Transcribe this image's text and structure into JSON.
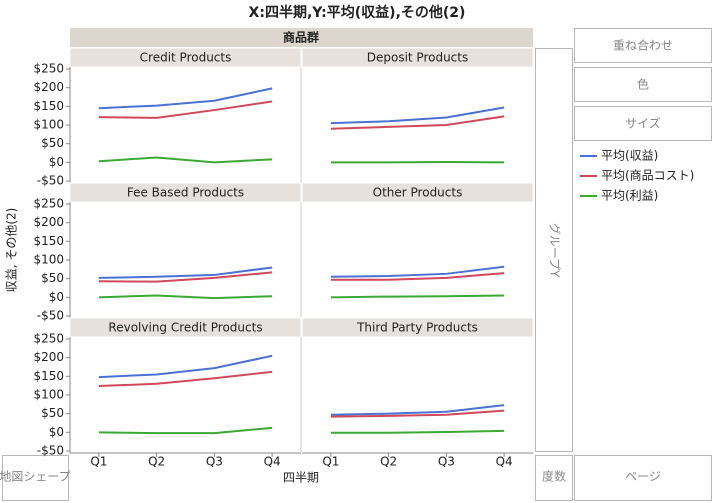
{
  "title": "X:四半期,Y:平均(収益),その他(2)",
  "group_x_header": "商品群",
  "y_label": "収益, その他(2)",
  "x_label": "四半期",
  "zones": {
    "overlay": "重ね合わせ",
    "color": "色",
    "size": "サイズ",
    "group_y": "グループY",
    "map_shape": "地図シェープ",
    "frequency": "度数",
    "page": "ページ"
  },
  "chart_data": [
    {
      "type": "line",
      "title": "Credit Products",
      "categories": [
        "Q1",
        "Q2",
        "Q3",
        "Q4"
      ],
      "ylim": [
        -50,
        250
      ],
      "yticks": [
        {
          "value": 250,
          "label": "$250"
        },
        {
          "value": 200,
          "label": "$200"
        },
        {
          "value": 150,
          "label": "$150"
        },
        {
          "value": 100,
          "label": "$100"
        },
        {
          "value": 50,
          "label": "$50"
        },
        {
          "value": 0,
          "label": "$0"
        },
        {
          "value": -50,
          "label": "-$50"
        }
      ],
      "series": [
        {
          "name": "平均(収益)",
          "color": "#4a72d4",
          "values": [
            145,
            152,
            165,
            198
          ]
        },
        {
          "name": "平均(商品コスト)",
          "color": "#d0495a",
          "values": [
            121,
            119,
            140,
            163
          ]
        },
        {
          "name": "平均(利益)",
          "color": "#3aaa35",
          "values": [
            3,
            13,
            0,
            8
          ]
        }
      ]
    },
    {
      "type": "line",
      "title": "Deposit Products",
      "categories": [
        "Q1",
        "Q2",
        "Q3",
        "Q4"
      ],
      "ylim": [
        -50,
        250
      ],
      "series": [
        {
          "name": "平均(収益)",
          "color": "#4a72d4",
          "values": [
            105,
            110,
            120,
            147
          ]
        },
        {
          "name": "平均(商品コスト)",
          "color": "#d0495a",
          "values": [
            90,
            95,
            100,
            123
          ]
        },
        {
          "name": "平均(利益)",
          "color": "#3aaa35",
          "values": [
            0,
            0,
            1,
            0
          ]
        }
      ]
    },
    {
      "type": "line",
      "title": "Fee Based Products",
      "categories": [
        "Q1",
        "Q2",
        "Q3",
        "Q4"
      ],
      "ylim": [
        -50,
        250
      ],
      "yticks": [
        {
          "value": 250,
          "label": "$250"
        },
        {
          "value": 200,
          "label": "$200"
        },
        {
          "value": 150,
          "label": "$150"
        },
        {
          "value": 100,
          "label": "$100"
        },
        {
          "value": 50,
          "label": "$50"
        },
        {
          "value": 0,
          "label": "$0"
        },
        {
          "value": -50,
          "label": "-$50"
        }
      ],
      "series": [
        {
          "name": "平均(収益)",
          "color": "#4a72d4",
          "values": [
            52,
            55,
            60,
            80
          ]
        },
        {
          "name": "平均(商品コスト)",
          "color": "#d0495a",
          "values": [
            43,
            42,
            52,
            67
          ]
        },
        {
          "name": "平均(利益)",
          "color": "#3aaa35",
          "values": [
            0,
            5,
            -2,
            3
          ]
        }
      ]
    },
    {
      "type": "line",
      "title": "Other Products",
      "categories": [
        "Q1",
        "Q2",
        "Q3",
        "Q4"
      ],
      "ylim": [
        -50,
        250
      ],
      "series": [
        {
          "name": "平均(収益)",
          "color": "#4a72d4",
          "values": [
            55,
            57,
            63,
            82
          ]
        },
        {
          "name": "平均(商品コスト)",
          "color": "#d0495a",
          "values": [
            47,
            47,
            52,
            65
          ]
        },
        {
          "name": "平均(利益)",
          "color": "#3aaa35",
          "values": [
            0,
            2,
            3,
            5
          ]
        }
      ]
    },
    {
      "type": "line",
      "title": "Revolving Credit Products",
      "categories": [
        "Q1",
        "Q2",
        "Q3",
        "Q4"
      ],
      "ylim": [
        -50,
        250
      ],
      "yticks": [
        {
          "value": 250,
          "label": "$250"
        },
        {
          "value": 200,
          "label": "$200"
        },
        {
          "value": 150,
          "label": "$150"
        },
        {
          "value": 100,
          "label": "$100"
        },
        {
          "value": 50,
          "label": "$50"
        },
        {
          "value": 0,
          "label": "$0"
        },
        {
          "value": -50,
          "label": "-$50"
        }
      ],
      "series": [
        {
          "name": "平均(収益)",
          "color": "#4a72d4",
          "values": [
            148,
            155,
            172,
            205
          ]
        },
        {
          "name": "平均(商品コスト)",
          "color": "#d0495a",
          "values": [
            124,
            130,
            145,
            162
          ]
        },
        {
          "name": "平均(利益)",
          "color": "#3aaa35",
          "values": [
            0,
            -2,
            -2,
            12
          ]
        }
      ]
    },
    {
      "type": "line",
      "title": "Third Party Products",
      "categories": [
        "Q1",
        "Q2",
        "Q3",
        "Q4"
      ],
      "ylim": [
        -50,
        250
      ],
      "series": [
        {
          "name": "平均(収益)",
          "color": "#4a72d4",
          "values": [
            47,
            50,
            55,
            73
          ]
        },
        {
          "name": "平均(商品コスト)",
          "color": "#d0495a",
          "values": [
            42,
            44,
            47,
            58
          ]
        },
        {
          "name": "平均(利益)",
          "color": "#3aaa35",
          "values": [
            -1,
            -1,
            1,
            4
          ]
        }
      ]
    }
  ]
}
